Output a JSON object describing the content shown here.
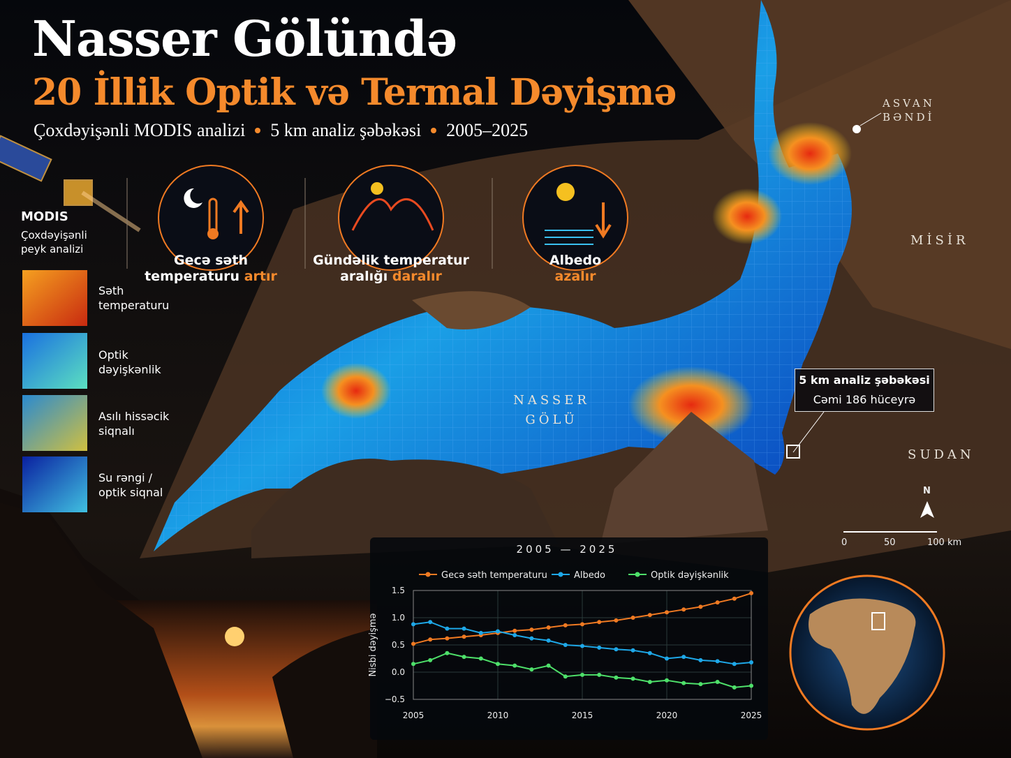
{
  "header": {
    "title": "Nasser Gölündə",
    "subtitle": "20 İllik Optik və Termal Dəyişmə",
    "meta": [
      "Çoxdəyişənli MODIS analizi",
      "5 km analiz şəbəkəsi",
      "2005–2025"
    ]
  },
  "sidebar": {
    "title": "MODIS",
    "subtitle": "Çoxdəyişənli peyk analizi",
    "layers": [
      "Səth temperaturu",
      "Optik dəyişkənlik",
      "Asılı hissəcik siqnalı",
      "Su rəngi / optik siqnal"
    ]
  },
  "indicators": [
    {
      "label": "Gecə səth temperaturu",
      "trend": "artır"
    },
    {
      "label": "Gündəlik temperatur aralığı",
      "trend": "daralır"
    },
    {
      "label": "Albedo",
      "trend": "azalır"
    }
  ],
  "map": {
    "lake": "NASSER GÖLÜ",
    "dam": "ASVAN BƏNDİ",
    "regions": [
      "MİSİR",
      "SUDAN"
    ],
    "north": "N",
    "scale": [
      "0",
      "50",
      "100 km"
    ],
    "callout": {
      "title": "5 km analiz şəbəkəsi",
      "text": "Cəmi 186 hüceyrə"
    }
  },
  "chart_data": {
    "type": "line",
    "title": "2005 — 2025",
    "y_label": "Nisbi dəyişmə",
    "x": [
      2005,
      2006,
      2007,
      2008,
      2009,
      2010,
      2011,
      2012,
      2013,
      2014,
      2015,
      2016,
      2017,
      2018,
      2019,
      2020,
      2021,
      2022,
      2023,
      2024,
      2025
    ],
    "series": [
      {
        "name": "Gecə səth temperaturu",
        "color": "#f07a22",
        "values": [
          0.52,
          0.6,
          0.62,
          0.65,
          0.68,
          0.72,
          0.76,
          0.78,
          0.82,
          0.86,
          0.88,
          0.92,
          0.95,
          1.0,
          1.05,
          1.1,
          1.15,
          1.2,
          1.28,
          1.35,
          1.45
        ]
      },
      {
        "name": "Albedo",
        "color": "#1ea8e8",
        "values": [
          0.88,
          0.92,
          0.8,
          0.8,
          0.72,
          0.75,
          0.68,
          0.62,
          0.58,
          0.5,
          0.48,
          0.45,
          0.42,
          0.4,
          0.35,
          0.25,
          0.28,
          0.22,
          0.2,
          0.15,
          0.18
        ]
      },
      {
        "name": "Optik dəyişkənlik",
        "color": "#4ee06a",
        "values": [
          0.15,
          0.22,
          0.35,
          0.28,
          0.25,
          0.15,
          0.12,
          0.05,
          0.12,
          -0.08,
          -0.05,
          -0.05,
          -0.1,
          -0.12,
          -0.18,
          -0.15,
          -0.2,
          -0.22,
          -0.18,
          -0.28,
          -0.25
        ]
      }
    ],
    "xlim": [
      2005,
      2025
    ],
    "xticks": [
      2005,
      2010,
      2015,
      2020,
      2025
    ],
    "ylim": [
      -0.5,
      1.5
    ],
    "yticks": [
      1.5,
      {
        "value": 1.0,
        "label": "1.0"
      },
      0.5,
      {
        "value": 0.0,
        "label": "0.0"
      },
      {
        "value": -0.5,
        "label": "−0.5"
      }
    ],
    "grid": true
  }
}
